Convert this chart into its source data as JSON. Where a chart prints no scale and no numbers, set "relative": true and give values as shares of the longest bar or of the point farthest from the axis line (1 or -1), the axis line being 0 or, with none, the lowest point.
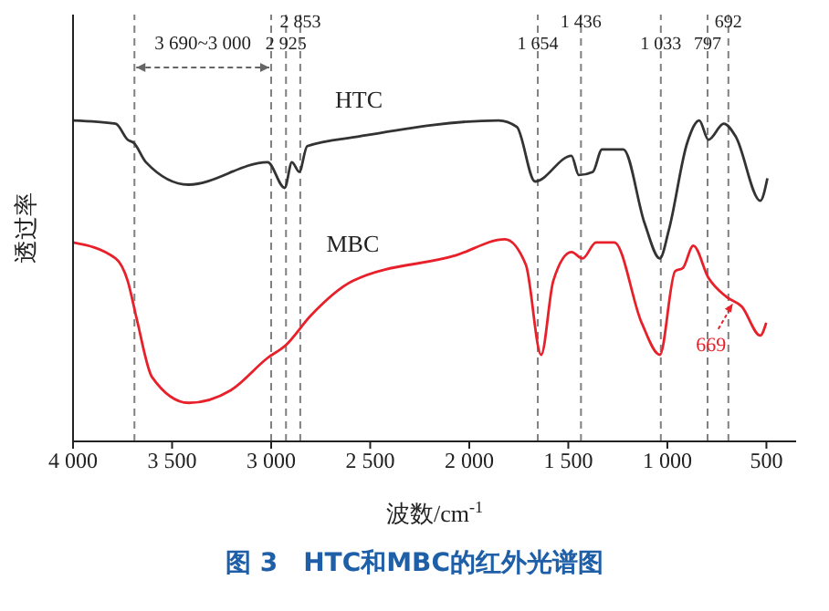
{
  "chart_data": {
    "type": "line",
    "title": "图 3　HTC和MBC的红外光谱图",
    "xlabel": "波数/cm$^{-1}$",
    "ylabel": "透过率",
    "relative": true,
    "xlim": [
      4000,
      350
    ],
    "xticks": [
      {
        "value": 4000,
        "label": "4 000"
      },
      {
        "value": 3500,
        "label": "3 500"
      },
      {
        "value": 3000,
        "label": "3 000"
      },
      {
        "value": 2500,
        "label": "2 500"
      },
      {
        "value": 2000,
        "label": "2 000"
      },
      {
        "value": 1500,
        "label": "1 500"
      },
      {
        "value": 1000,
        "label": "1 000"
      },
      500
    ],
    "tick_labels": "x",
    "series": [
      {
        "name": "HTC",
        "color": "#333333",
        "x": [
          4000,
          3785,
          3724,
          3693,
          3632,
          3417,
          3018,
          2932,
          2895,
          2858,
          2818,
          2557,
          1852,
          1760,
          1668,
          1484,
          1447,
          1376,
          1330,
          1222,
          1115,
          1038,
          992,
          900,
          839,
          793,
          715,
          655,
          531,
          495
        ],
        "values": [
          1.0,
          0.99,
          0.94,
          0.93,
          0.87,
          0.8,
          0.87,
          0.79,
          0.87,
          0.84,
          0.92,
          0.95,
          1.0,
          0.98,
          0.81,
          0.89,
          0.83,
          0.84,
          0.91,
          0.91,
          0.68,
          0.57,
          0.66,
          0.93,
          1.0,
          0.94,
          0.99,
          0.95,
          0.75,
          0.82
        ]
      },
      {
        "name": "MBC",
        "color": "#e8202a",
        "x": [
          4000,
          3785,
          3724,
          3678,
          3601,
          3417,
          3202,
          3018,
          2926,
          2803,
          2588,
          2066,
          1820,
          1714,
          1637,
          1576,
          1484,
          1428,
          1360,
          1268,
          1130,
          1038,
          961,
          922,
          869,
          793,
          701,
          624,
          531,
          501
        ],
        "values": [
          0.62,
          0.57,
          0.5,
          0.38,
          0.2,
          0.12,
          0.16,
          0.26,
          0.3,
          0.39,
          0.5,
          0.58,
          0.63,
          0.55,
          0.27,
          0.5,
          0.59,
          0.57,
          0.62,
          0.62,
          0.37,
          0.27,
          0.53,
          0.54,
          0.61,
          0.51,
          0.45,
          0.42,
          0.33,
          0.37
        ]
      }
    ],
    "ref_lines": [
      {
        "axis": "x",
        "value": 3690,
        "label": null,
        "color": "#808080",
        "line_style": "dashed"
      },
      {
        "axis": "x",
        "value": 3000,
        "label": null,
        "color": "#808080",
        "line_style": "dashed"
      },
      {
        "axis": "x",
        "value": 2925,
        "label": "2 925",
        "color": "#808080",
        "line_style": "dashed"
      },
      {
        "axis": "x",
        "value": 2853,
        "label": "2 853",
        "color": "#808080",
        "line_style": "dashed"
      },
      {
        "axis": "x",
        "value": 1654,
        "label": "1 654",
        "color": "#808080",
        "line_style": "dashed"
      },
      {
        "axis": "x",
        "value": 1436,
        "label": "1 436",
        "color": "#808080",
        "line_style": "dashed"
      },
      {
        "axis": "x",
        "value": 1033,
        "label": "1 033",
        "color": "#808080",
        "line_style": "dashed"
      },
      {
        "axis": "x",
        "value": 797,
        "label": "797",
        "color": "#808080",
        "line_style": "dashed"
      },
      {
        "axis": "x",
        "value": 692,
        "label": "692",
        "color": "#808080",
        "line_style": "dashed"
      }
    ],
    "annotations": [
      "3 690~3 000",
      {
        "text": "669",
        "x": 669,
        "y": 0.43
      }
    ]
  }
}
